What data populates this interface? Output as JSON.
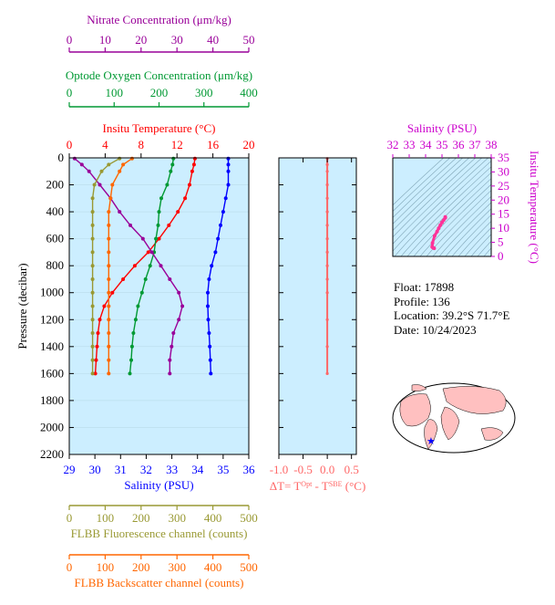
{
  "colors": {
    "nitrate": "#990099",
    "oxygen": "#009933",
    "temperature": "#ff0000",
    "salinity": "#0000ff",
    "fluorescence": "#999933",
    "backscatter": "#ff6600",
    "delta": "#ff6666",
    "ts_axis": "#cc00cc",
    "plot_bg": "#cceeff",
    "map_land": "#ffc0c0",
    "map_ocean": "#ffffff"
  },
  "axes": {
    "nitrate": {
      "label": "Nitrate Concentration (μm/kg)",
      "ticks": [
        0,
        10,
        20,
        30,
        40,
        50
      ],
      "range": [
        0,
        50
      ]
    },
    "oxygen": {
      "label": "Optode Oxygen Concentration (μm/kg)",
      "ticks": [
        0,
        100,
        200,
        300,
        400
      ],
      "range": [
        0,
        400
      ]
    },
    "temperature": {
      "label": "Insitu Temperature (°C)",
      "ticks": [
        0,
        4,
        8,
        12,
        16,
        20
      ],
      "range": [
        0,
        20
      ]
    },
    "salinity": {
      "label": "Salinity (PSU)",
      "ticks": [
        29,
        30,
        31,
        32,
        33,
        34,
        35,
        36
      ],
      "range": [
        29,
        36
      ]
    },
    "pressure": {
      "label": "Pressure (decibar)",
      "ticks": [
        0,
        200,
        400,
        600,
        800,
        1000,
        1200,
        1400,
        1600,
        1800,
        2000,
        2200
      ],
      "range": [
        0,
        2200
      ]
    },
    "fluorescence": {
      "label": "FLBB Fluorescence channel (counts)",
      "ticks": [
        0,
        100,
        200,
        300,
        400,
        500
      ],
      "range": [
        0,
        500
      ]
    },
    "backscatter": {
      "label": "FLBB Backscatter channel (counts)",
      "ticks": [
        0,
        100,
        200,
        300,
        400,
        500
      ],
      "range": [
        0,
        500
      ]
    },
    "delta": {
      "label_prefix": "ΔT= T",
      "label_sup1": "Opt",
      "label_mid": " - T",
      "label_sup2": "SBE",
      "label_suffix": " (°C)",
      "ticks": [
        "-1.0",
        "-0.5",
        "0.0",
        "0.5"
      ],
      "range": [
        -1.0,
        0.6
      ]
    },
    "ts_salinity": {
      "label": "Salinity (PSU)",
      "ticks": [
        32,
        33,
        34,
        35,
        36,
        37,
        38
      ],
      "range": [
        32,
        38
      ]
    },
    "ts_temperature": {
      "label": "Insitu Temperature (°C)",
      "ticks": [
        0,
        5,
        10,
        15,
        20,
        25,
        30,
        35
      ],
      "range": [
        0,
        35
      ]
    }
  },
  "info": {
    "float": "Float:  17898",
    "profile": "Profile:  136",
    "location": "Location:  39.2°S  71.7°E",
    "date": "Date:  10/24/2023"
  },
  "chart_data": [
    {
      "type": "line",
      "y_axis": "Pressure (decibar)",
      "series": [
        {
          "name": "Insitu Temperature (°C)",
          "key": "temperature",
          "x": [
            14.0,
            13.9,
            13.7,
            13.4,
            12.9,
            12.1,
            11.1,
            10.0,
            8.8,
            7.3,
            6.0,
            4.8,
            3.9,
            3.4,
            3.2,
            3.1,
            3.0,
            2.9
          ],
          "y": [
            5,
            50,
            100,
            200,
            300,
            400,
            500,
            600,
            700,
            800,
            900,
            1000,
            1100,
            1200,
            1300,
            1400,
            1500,
            1600
          ]
        },
        {
          "name": "Salinity (PSU)",
          "key": "salinity",
          "x": [
            35.2,
            35.2,
            35.2,
            35.2,
            35.1,
            35.0,
            34.9,
            34.8,
            34.7,
            34.55,
            34.45,
            34.4,
            34.4,
            34.42,
            34.45,
            34.48,
            34.5,
            34.52
          ],
          "y": [
            5,
            50,
            100,
            200,
            300,
            400,
            500,
            600,
            700,
            800,
            900,
            1000,
            1100,
            1200,
            1300,
            1400,
            1500,
            1600
          ]
        },
        {
          "name": "Optode Oxygen Concentration (μm/kg)",
          "key": "oxygen",
          "x": [
            232,
            230,
            226,
            218,
            205,
            200,
            198,
            193,
            189,
            180,
            170,
            162,
            153,
            148,
            143,
            140,
            138,
            135
          ],
          "y": [
            5,
            50,
            100,
            200,
            300,
            400,
            500,
            600,
            700,
            800,
            900,
            1000,
            1100,
            1200,
            1300,
            1400,
            1500,
            1600
          ]
        },
        {
          "name": "Nitrate Concentration (μm/kg)",
          "key": "nitrate",
          "x": [
            1.5,
            3.5,
            5.5,
            8.5,
            11.5,
            14.0,
            17.0,
            20.5,
            23.0,
            25.5,
            28.0,
            30.5,
            31.5,
            30.5,
            29.0,
            28.5,
            28.0,
            28.0
          ],
          "y": [
            5,
            50,
            100,
            200,
            300,
            400,
            500,
            600,
            700,
            800,
            900,
            1000,
            1100,
            1200,
            1300,
            1400,
            1500,
            1600
          ]
        },
        {
          "name": "FLBB Fluorescence channel (counts)",
          "key": "fluorescence",
          "x": [
            140,
            110,
            90,
            70,
            65,
            65,
            65,
            65,
            65,
            65,
            65,
            65,
            65,
            65,
            65,
            65,
            65,
            65
          ],
          "y": [
            5,
            50,
            100,
            200,
            300,
            400,
            500,
            600,
            700,
            800,
            900,
            1000,
            1100,
            1200,
            1300,
            1400,
            1500,
            1600
          ]
        },
        {
          "name": "FLBB Backscatter channel (counts)",
          "key": "backscatter",
          "x": [
            175,
            150,
            140,
            120,
            115,
            110,
            110,
            110,
            110,
            110,
            110,
            110,
            110,
            110,
            110,
            110,
            110,
            110
          ],
          "y": [
            5,
            50,
            100,
            200,
            300,
            400,
            500,
            600,
            700,
            800,
            900,
            1000,
            1100,
            1200,
            1300,
            1400,
            1500,
            1600
          ]
        }
      ]
    },
    {
      "type": "line",
      "x_axis": "ΔT= T Opt - T SBE (°C)",
      "series": [
        {
          "key": "delta",
          "x": [
            0.0,
            0.0,
            0.0,
            0.0,
            0.0,
            0.0,
            0.0,
            0.0,
            0.0,
            0.0,
            0.0,
            0.0,
            0.0,
            0.0,
            0.0
          ],
          "y": [
            5,
            50,
            100,
            200,
            300,
            400,
            500,
            600,
            700,
            800,
            900,
            1000,
            1200,
            1400,
            1600
          ]
        }
      ]
    },
    {
      "type": "scatter",
      "x_axis": "Salinity (PSU)",
      "y_axis": "Insitu Temperature (°C)",
      "series": [
        {
          "key": "ts",
          "x": [
            34.52,
            34.45,
            34.4,
            34.42,
            34.55,
            34.7,
            34.8,
            34.9,
            35.0,
            35.1,
            35.2,
            35.2
          ],
          "y": [
            2.9,
            3.1,
            3.4,
            4.8,
            7.3,
            8.8,
            10.0,
            11.1,
            12.1,
            12.9,
            13.7,
            14.0
          ]
        }
      ]
    }
  ]
}
